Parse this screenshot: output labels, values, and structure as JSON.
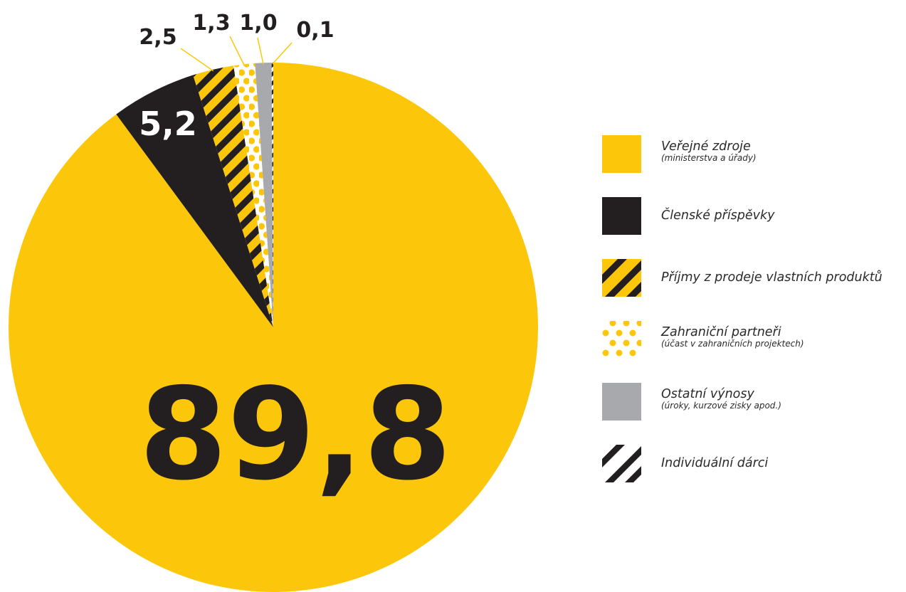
{
  "colors": {
    "yellow": "#fcc70a",
    "black": "#231f20",
    "gray": "#a7a9ac",
    "white": "#ffffff"
  },
  "chart_data": {
    "type": "pie",
    "unit": "%",
    "slices": [
      {
        "label": "Veřejné zdroje",
        "sublabel": "(ministerstva a úřady)",
        "value": 89.8,
        "display": "89,8",
        "fill": "yellow"
      },
      {
        "label": "Členské příspěvky",
        "sublabel": "",
        "value": 5.2,
        "display": "5,2",
        "fill": "black"
      },
      {
        "label": "Příjmy z prodeje vlastních produktů",
        "sublabel": "",
        "value": 2.5,
        "display": "2,5",
        "fill": "yellow-black-stripes"
      },
      {
        "label": "Zahraniční partneři",
        "sublabel": "(účast v zahraničních projektech)",
        "value": 1.3,
        "display": "1,3",
        "fill": "yellow-dots"
      },
      {
        "label": "Ostatní výnosy",
        "sublabel": "(úroky, kurzové zisky apod.)",
        "value": 1.0,
        "display": "1,0",
        "fill": "gray"
      },
      {
        "label": "Individuální dárci",
        "sublabel": "",
        "value": 0.1,
        "display": "0,1",
        "fill": "black-white-stripes"
      }
    ],
    "legend_position": "right"
  }
}
